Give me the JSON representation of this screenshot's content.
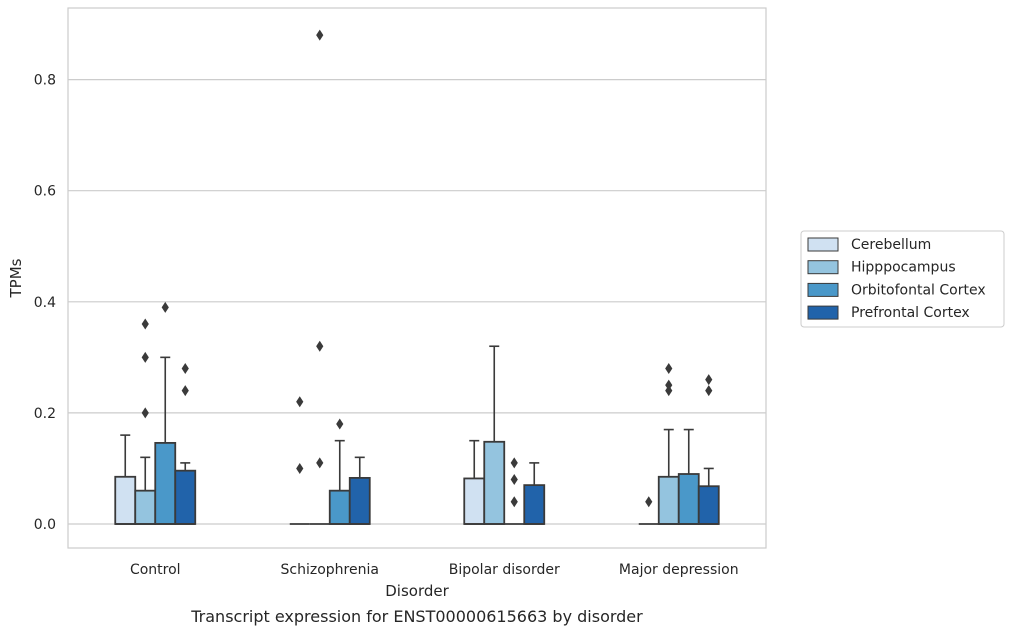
{
  "chart_data": {
    "type": "box",
    "title": "",
    "caption": "Transcript expression for ENST00000615663 by disorder",
    "xlabel": "Disorder",
    "ylabel": "TPMs",
    "ylim": [
      -0.042,
      0.93
    ],
    "yticks": [
      0.0,
      0.2,
      0.4,
      0.6,
      0.8
    ],
    "ytick_labels": [
      "0.0",
      "0.2",
      "0.4",
      "0.6",
      "0.8"
    ],
    "grid": "horizontal",
    "legend_position": "right",
    "categories": [
      "Control",
      "Schizophrenia",
      "Bipolar disorder",
      "Major depression"
    ],
    "series": [
      {
        "name": "Cerebellum",
        "color": "#d0e1f2",
        "boxes": [
          {
            "q1": 0.0,
            "median": 0.0,
            "q3": 0.085,
            "whisker_low": 0.0,
            "whisker_high": 0.16,
            "outliers": []
          },
          {
            "q1": 0.0,
            "median": 0.0,
            "q3": 0.0,
            "whisker_low": 0.0,
            "whisker_high": 0.0,
            "outliers": [
              0.1,
              0.22
            ]
          },
          {
            "q1": 0.0,
            "median": 0.0,
            "q3": 0.082,
            "whisker_low": 0.0,
            "whisker_high": 0.15,
            "outliers": []
          },
          {
            "q1": 0.0,
            "median": 0.0,
            "q3": 0.0,
            "whisker_low": 0.0,
            "whisker_high": 0.0,
            "outliers": [
              0.04
            ]
          }
        ]
      },
      {
        "name": "Hipppocampus",
        "color": "#94c4df",
        "boxes": [
          {
            "q1": 0.0,
            "median": 0.0,
            "q3": 0.06,
            "whisker_low": 0.0,
            "whisker_high": 0.12,
            "outliers": [
              0.2,
              0.3,
              0.36
            ]
          },
          {
            "q1": 0.0,
            "median": 0.0,
            "q3": 0.0,
            "whisker_low": 0.0,
            "whisker_high": 0.0,
            "outliers": [
              0.11,
              0.32,
              0.88
            ]
          },
          {
            "q1": 0.0,
            "median": 0.0,
            "q3": 0.148,
            "whisker_low": 0.0,
            "whisker_high": 0.32,
            "outliers": []
          },
          {
            "q1": 0.0,
            "median": 0.0,
            "q3": 0.085,
            "whisker_low": 0.0,
            "whisker_high": 0.17,
            "outliers": [
              0.24,
              0.25,
              0.28
            ]
          }
        ]
      },
      {
        "name": "Orbitofontal Cortex",
        "color": "#4a98c9",
        "boxes": [
          {
            "q1": 0.0,
            "median": 0.0,
            "q3": 0.146,
            "whisker_low": 0.0,
            "whisker_high": 0.3,
            "outliers": [
              0.39
            ]
          },
          {
            "q1": 0.0,
            "median": 0.0,
            "q3": 0.06,
            "whisker_low": 0.0,
            "whisker_high": 0.15,
            "outliers": [
              0.18
            ]
          },
          {
            "q1": 0.0,
            "median": 0.0,
            "q3": 0.0,
            "whisker_low": 0.0,
            "whisker_high": 0.0,
            "outliers": [
              0.04,
              0.08,
              0.11
            ]
          },
          {
            "q1": 0.0,
            "median": 0.0,
            "q3": 0.09,
            "whisker_low": 0.0,
            "whisker_high": 0.17,
            "outliers": []
          }
        ]
      },
      {
        "name": "Prefrontal Cortex",
        "color": "#2163aa",
        "boxes": [
          {
            "q1": 0.0,
            "median": 0.0,
            "q3": 0.096,
            "whisker_low": 0.0,
            "whisker_high": 0.11,
            "outliers": [
              0.24,
              0.28
            ]
          },
          {
            "q1": 0.0,
            "median": 0.0,
            "q3": 0.083,
            "whisker_low": 0.0,
            "whisker_high": 0.12,
            "outliers": []
          },
          {
            "q1": 0.0,
            "median": 0.0,
            "q3": 0.07,
            "whisker_low": 0.0,
            "whisker_high": 0.11,
            "outliers": []
          },
          {
            "q1": 0.0,
            "median": 0.0,
            "q3": 0.068,
            "whisker_low": 0.0,
            "whisker_high": 0.1,
            "outliers": [
              0.24,
              0.26
            ]
          }
        ]
      }
    ]
  },
  "colors": {
    "grid": "#cccccc",
    "frame": "#cccccc",
    "box_edge": "#3a3a3a",
    "text": "#262626"
  }
}
